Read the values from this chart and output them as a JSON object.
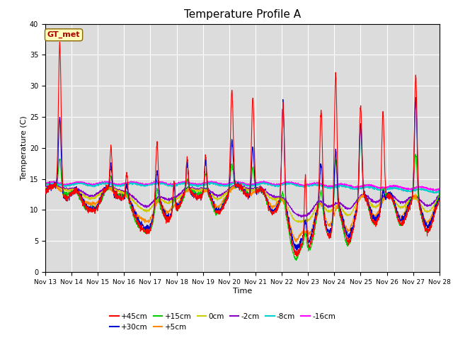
{
  "title": "Temperature Profile A",
  "xlabel": "Time",
  "ylabel": "Temperature (C)",
  "ylim": [
    0,
    40
  ],
  "n_days": 15,
  "background_color": "#dcdcdc",
  "figure_bg": "#ffffff",
  "series": {
    "+45cm": {
      "color": "#ff0000",
      "lw": 0.8,
      "zorder": 6
    },
    "+30cm": {
      "color": "#0000cc",
      "lw": 0.8,
      "zorder": 5
    },
    "+15cm": {
      "color": "#00cc00",
      "lw": 0.8,
      "zorder": 4
    },
    "+5cm": {
      "color": "#ff8800",
      "lw": 0.8,
      "zorder": 3
    },
    "0cm": {
      "color": "#cccc00",
      "lw": 0.8,
      "zorder": 3
    },
    "-2cm": {
      "color": "#8800cc",
      "lw": 0.8,
      "zorder": 3
    },
    "-8cm": {
      "color": "#00cccc",
      "lw": 0.8,
      "zorder": 2
    },
    "-16cm": {
      "color": "#ff00ff",
      "lw": 0.8,
      "zorder": 2
    }
  },
  "annotation_text": "GT_met",
  "annotation_bg": "#ffffbb",
  "annotation_color": "#aa0000",
  "xtick_labels": [
    "Nov 13",
    "Nov 14",
    "Nov 15",
    "Nov 16",
    "Nov 17",
    "Nov 18",
    "Nov 19",
    "Nov 20",
    "Nov 21",
    "Nov 22",
    "Nov 23",
    "Nov 24",
    "Nov 25",
    "Nov 26",
    "Nov 27",
    "Nov 28"
  ],
  "grid_color": "#ffffff",
  "title_fontsize": 11,
  "legend_ncol": 6,
  "legend_order": [
    "+45cm",
    "+30cm",
    "+15cm",
    "+5cm",
    "0cm",
    "-2cm",
    "-8cm",
    "-16cm"
  ]
}
